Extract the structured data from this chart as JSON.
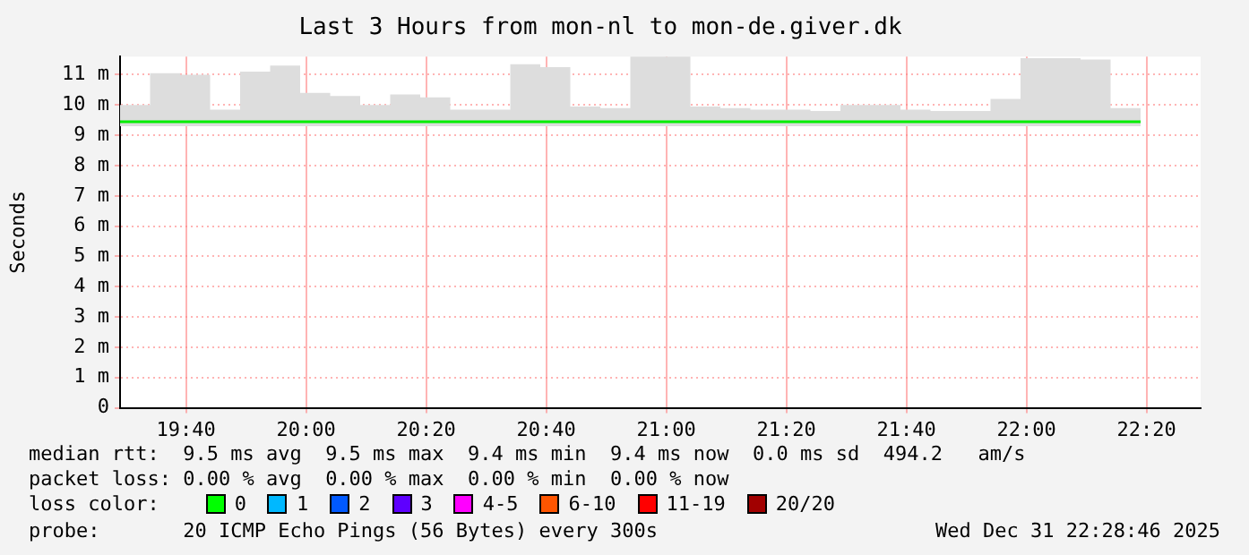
{
  "chart_data": {
    "type": "step",
    "title": "Last 3 Hours from mon-nl to mon-de.giver.dk",
    "ylabel": "Seconds",
    "x": [
      19.4833,
      19.5667,
      19.65,
      19.7333,
      19.8167,
      19.9,
      19.9833,
      20.0667,
      20.15,
      20.2333,
      20.3167,
      20.4,
      20.4833,
      20.5667,
      20.65,
      20.7333,
      20.8167,
      20.9,
      20.9833,
      21.0667,
      21.15,
      21.2333,
      21.3167,
      21.4,
      21.4833,
      21.5667,
      21.65,
      21.7333,
      21.8167,
      21.9,
      21.9833,
      22.0667,
      22.15,
      22.2333,
      22.3167
    ],
    "series": [
      {
        "color": "#00ee00",
        "values": [
          9.45,
          9.45,
          9.45,
          9.45,
          9.45,
          9.45,
          9.45,
          9.45,
          9.45,
          9.45,
          9.45,
          9.45,
          9.45,
          9.45,
          9.45,
          9.45,
          9.45,
          9.45,
          9.45,
          9.45,
          9.45,
          9.45,
          9.45,
          9.45,
          9.45,
          9.45,
          9.45,
          9.45,
          9.45,
          9.45,
          9.45,
          9.45,
          9.45,
          9.45,
          9.45
        ],
        "lower": [
          9.3,
          9.3,
          9.3,
          9.3,
          9.3,
          9.3,
          9.3,
          9.3,
          9.3,
          9.3,
          9.3,
          9.3,
          9.3,
          9.3,
          9.3,
          9.3,
          9.3,
          9.3,
          9.3,
          9.3,
          9.3,
          9.3,
          9.3,
          9.3,
          9.3,
          9.3,
          9.3,
          9.3,
          9.3,
          9.3,
          9.3,
          9.3,
          9.3,
          9.3,
          9.3
        ],
        "upper": [
          10.0,
          11.05,
          11.0,
          9.85,
          11.1,
          11.3,
          10.4,
          10.3,
          10.0,
          10.35,
          10.25,
          9.85,
          9.85,
          11.35,
          11.25,
          9.95,
          9.9,
          11.6,
          11.6,
          9.95,
          9.9,
          9.85,
          9.85,
          9.8,
          10.0,
          10.0,
          9.85,
          9.8,
          9.8,
          10.2,
          11.55,
          11.55,
          11.5,
          9.9,
          11.55
        ]
      }
    ],
    "xlim": [
      19.4833,
      22.4833
    ],
    "xticks": [
      {
        "value": 19.6667,
        "label": "19:40"
      },
      {
        "value": 20,
        "label": "20:00"
      },
      {
        "value": 20.3333,
        "label": "20:20"
      },
      {
        "value": 20.6667,
        "label": "20:40"
      },
      {
        "value": 21,
        "label": "21:00"
      },
      {
        "value": 21.3333,
        "label": "21:20"
      },
      {
        "value": 21.6667,
        "label": "21:40"
      },
      {
        "value": 22,
        "label": "22:00"
      },
      {
        "value": 22.3333,
        "label": "22:20"
      }
    ],
    "ylim": [
      0,
      11.6
    ],
    "yticks": [
      0,
      {
        "value": 1,
        "label": "1 m"
      },
      {
        "value": 2,
        "label": "2 m"
      },
      {
        "value": 3,
        "label": "3 m"
      },
      {
        "value": 4,
        "label": "4 m"
      },
      {
        "value": 5,
        "label": "5 m"
      },
      {
        "value": 6,
        "label": "6 m"
      },
      {
        "value": 7,
        "label": "7 m"
      },
      {
        "value": 8,
        "label": "8 m"
      },
      {
        "value": 9,
        "label": "9 m"
      },
      {
        "value": 10,
        "label": "10 m"
      },
      {
        "value": 11,
        "label": "11 m"
      }
    ],
    "grid": true,
    "legend": false,
    "annotations": [
      "median rtt:  9.5 ms avg  9.5 ms max  9.4 ms min  9.4 ms now  0.0 ms sd  494.2   am/s",
      "packet loss: 0.00 % avg  0.00 % max  0.00 % min  0.00 % now",
      "loss color:",
      "0",
      "1",
      "2",
      "3",
      "4-5",
      "6-10",
      "11-19",
      "20/20",
      "probe:       20 ICMP Echo Pings (56 Bytes) every 300s",
      "Wed Dec 31 22:28:46 2025"
    ]
  }
}
